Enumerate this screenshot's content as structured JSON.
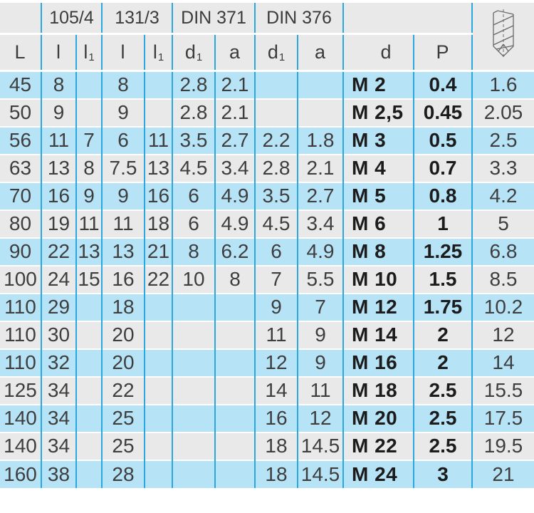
{
  "table": {
    "group_headers": [
      "105/4",
      "131/3",
      "DIN 371",
      "DIN 376"
    ],
    "col_headers": [
      {
        "base": "L",
        "sub": ""
      },
      {
        "base": "l",
        "sub": ""
      },
      {
        "base": "l",
        "sub": "1"
      },
      {
        "base": "l",
        "sub": ""
      },
      {
        "base": "l",
        "sub": "1"
      },
      {
        "base": "d",
        "sub": "1"
      },
      {
        "base": "a",
        "sub": ""
      },
      {
        "base": "d",
        "sub": "1"
      },
      {
        "base": "a",
        "sub": ""
      },
      {
        "base": "d",
        "sub": ""
      },
      {
        "base": "P",
        "sub": ""
      }
    ],
    "icon": "drill-bit-icon",
    "rows": [
      [
        "45",
        "8",
        "",
        "8",
        "",
        "2.8",
        "2.1",
        "",
        "",
        "M 2",
        "0.4",
        "1.6"
      ],
      [
        "50",
        "9",
        "",
        "9",
        "",
        "2.8",
        "2.1",
        "",
        "",
        "M 2,5",
        "0.45",
        "2.05"
      ],
      [
        "56",
        "11",
        "7",
        "6",
        "11",
        "3.5",
        "2.7",
        "2.2",
        "1.8",
        "M 3",
        "0.5",
        "2.5"
      ],
      [
        "63",
        "13",
        "8",
        "7.5",
        "13",
        "4.5",
        "3.4",
        "2.8",
        "2.1",
        "M 4",
        "0.7",
        "3.3"
      ],
      [
        "70",
        "16",
        "9",
        "9",
        "16",
        "6",
        "4.9",
        "3.5",
        "2.7",
        "M 5",
        "0.8",
        "4.2"
      ],
      [
        "80",
        "19",
        "11",
        "11",
        "18",
        "6",
        "4.9",
        "4.5",
        "3.4",
        "M 6",
        "1",
        "5"
      ],
      [
        "90",
        "22",
        "13",
        "13",
        "21",
        "8",
        "6.2",
        "6",
        "4.9",
        "M 8",
        "1.25",
        "6.8"
      ],
      [
        "100",
        "24",
        "15",
        "16",
        "22",
        "10",
        "8",
        "7",
        "5.5",
        "M 10",
        "1.5",
        "8.5"
      ],
      [
        "110",
        "29",
        "",
        "18",
        "",
        "",
        "",
        "9",
        "7",
        "M 12",
        "1.75",
        "10.2"
      ],
      [
        "110",
        "30",
        "",
        "20",
        "",
        "",
        "",
        "11",
        "9",
        "M 14",
        "2",
        "12"
      ],
      [
        "110",
        "32",
        "",
        "20",
        "",
        "",
        "",
        "12",
        "9",
        "M 16",
        "2",
        "14"
      ],
      [
        "125",
        "34",
        "",
        "22",
        "",
        "",
        "",
        "14",
        "11",
        "M 18",
        "2.5",
        "15.5"
      ],
      [
        "140",
        "34",
        "",
        "25",
        "",
        "",
        "",
        "16",
        "12",
        "M 20",
        "2.5",
        "17.5"
      ],
      [
        "140",
        "34",
        "",
        "25",
        "",
        "",
        "",
        "18",
        "14.5",
        "M 22",
        "2.5",
        "19.5"
      ],
      [
        "160",
        "38",
        "",
        "28",
        "",
        "",
        "",
        "18",
        "14.5",
        "M 24",
        "3",
        "21"
      ]
    ]
  },
  "colors": {
    "row_blue": "#b7e3f6",
    "row_gray": "#e9e9e9",
    "grid_line": "#2aa7df",
    "header_bg": "#e9e9e9",
    "text": "#3e3e3e",
    "bold_text": "#1c1c1c"
  }
}
